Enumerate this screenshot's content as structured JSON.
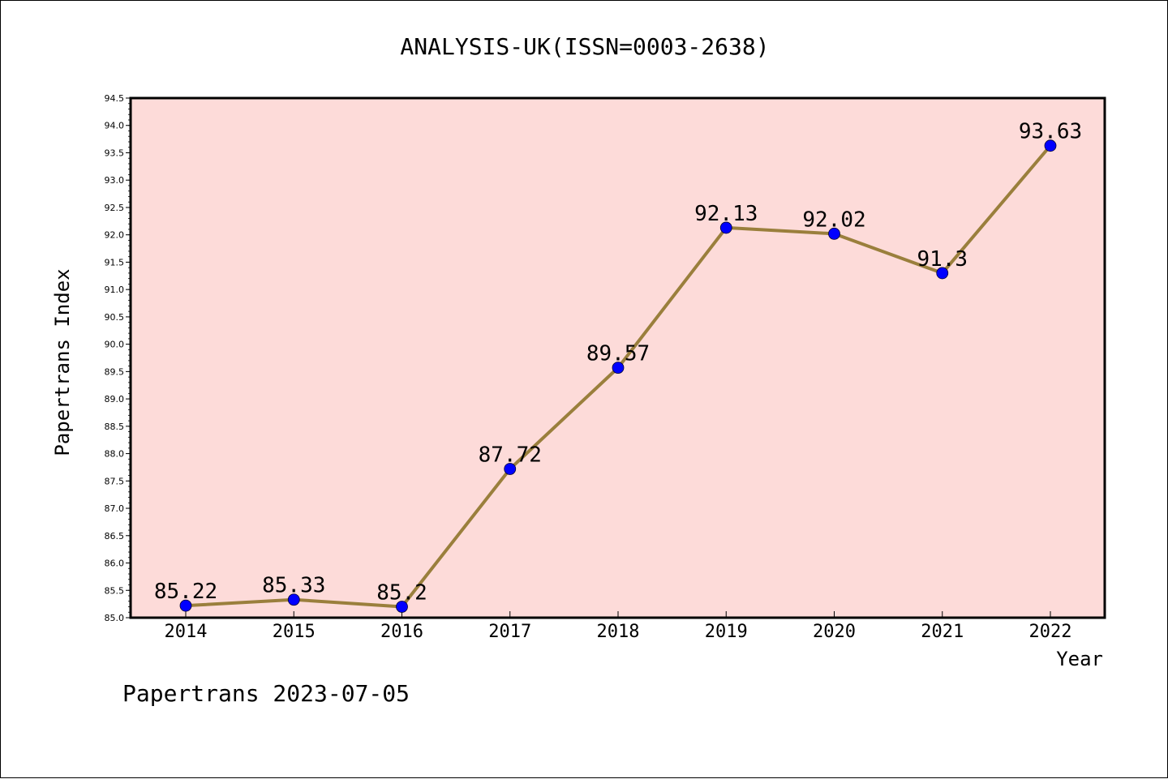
{
  "chart_data": {
    "type": "line",
    "title": "ANALYSIS-UK(ISSN=0003-2638)",
    "xlabel": "Year",
    "ylabel": "Papertrans Index",
    "footer": "Papertrans 2023-07-05",
    "categories": [
      "2014",
      "2015",
      "2016",
      "2017",
      "2018",
      "2019",
      "2020",
      "2021",
      "2022"
    ],
    "values": [
      85.22,
      85.33,
      85.2,
      87.72,
      89.57,
      92.13,
      92.02,
      91.3,
      93.63
    ],
    "value_labels": [
      "85.22",
      "85.33",
      "85.2",
      "87.72",
      "89.57",
      "92.13",
      "92.02",
      "91.3",
      "93.63"
    ],
    "ylim": [
      85.0,
      94.5
    ],
    "yticks": [
      "85.0",
      "85.5",
      "86.0",
      "86.5",
      "87.0",
      "87.5",
      "88.0",
      "88.5",
      "89.0",
      "89.5",
      "90.0",
      "90.5",
      "91.0",
      "91.5",
      "92.0",
      "92.5",
      "93.0",
      "93.5",
      "94.0",
      "94.5"
    ],
    "grid": false,
    "colors": {
      "plot_background": "#fddbd9",
      "line": "#9a7f3c",
      "marker": "#0000ff"
    }
  }
}
